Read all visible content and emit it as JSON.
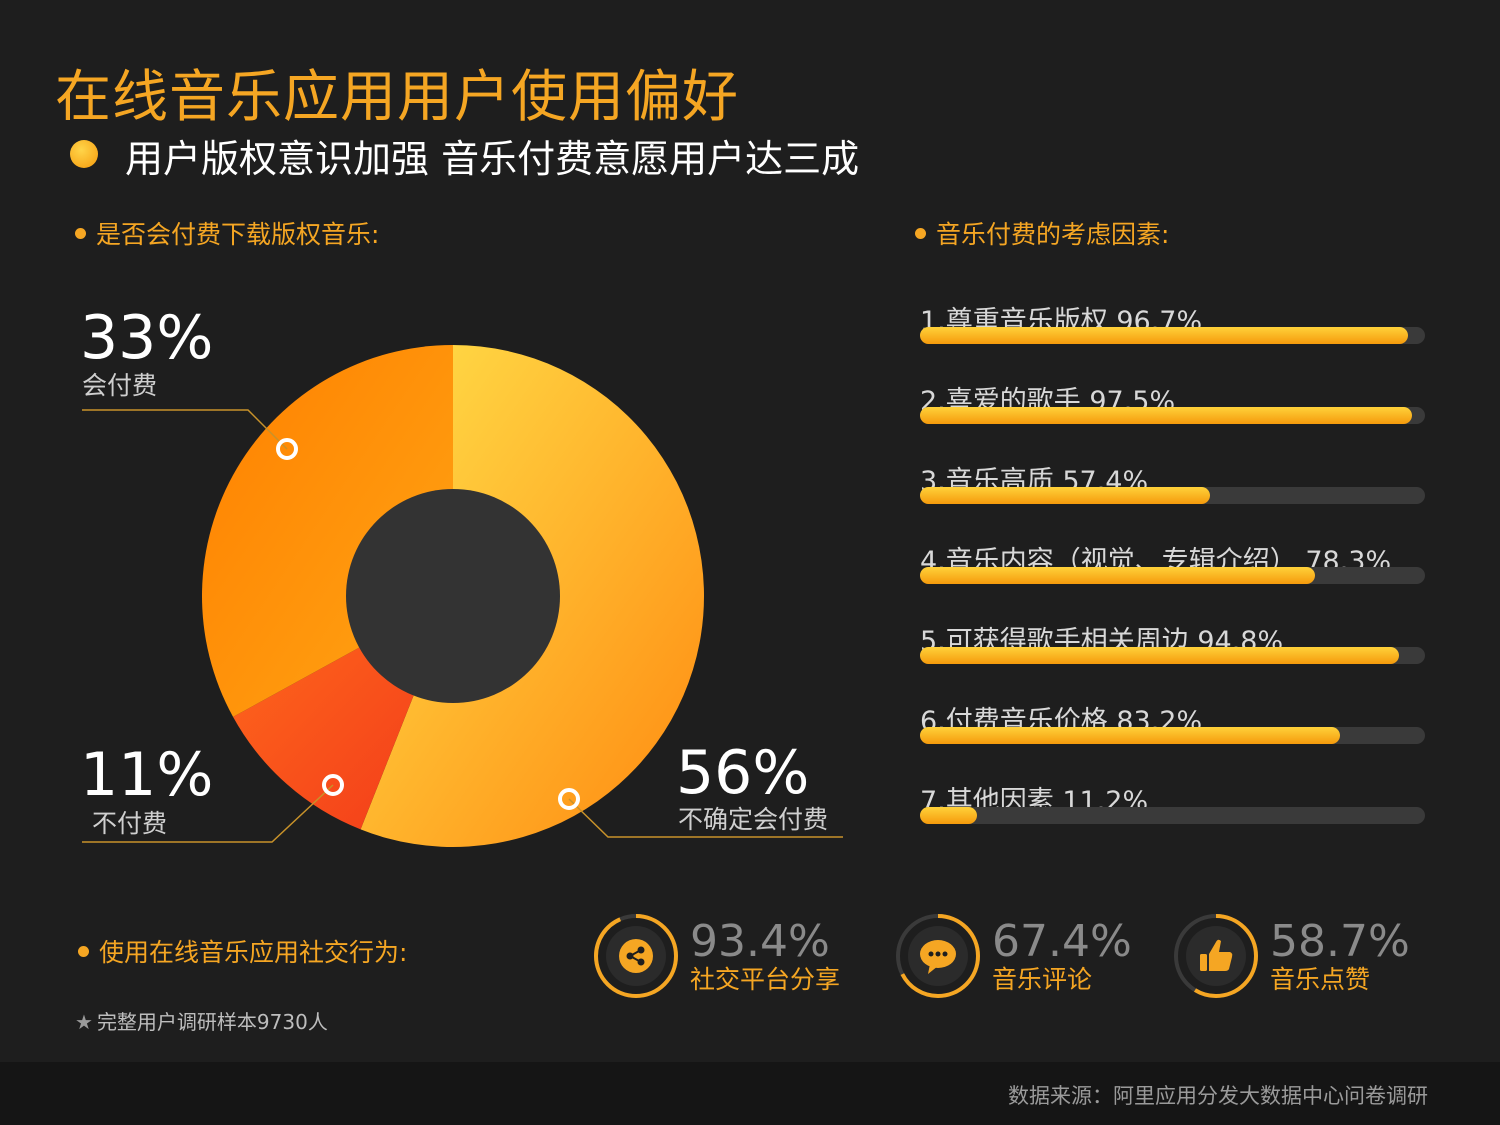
{
  "title": "在线音乐应用用户使用偏好",
  "subtitle": "用户版权意识加强 音乐付费意愿用户达三成",
  "pie_section_title": "是否会付费下载版权音乐:",
  "bars_section_title": "音乐付费的考虑因素:",
  "social_section_title": "使用在线音乐应用社交行为:",
  "note": "完整用户调研样本9730人",
  "source": "数据来源：阿里应用分发大数据中心问卷调研",
  "colors": {
    "accent": "#f5a623",
    "background": "#1e1e1e",
    "track": "#3a3a3a",
    "donut_hole": "#333333"
  },
  "chart_data": [
    {
      "type": "pie",
      "donut": true,
      "title": "是否会付费下载版权音乐:",
      "slices": [
        {
          "label": "不确定会付费",
          "value": 56,
          "display": "56%",
          "color": "#ffbe2e"
        },
        {
          "label": "不付费",
          "value": 11,
          "display": "11%",
          "color": "#ff4a22"
        },
        {
          "label": "会付费",
          "value": 33,
          "display": "33%",
          "color": "#ff8d0a"
        }
      ]
    },
    {
      "type": "bar",
      "orientation": "horizontal",
      "title": "音乐付费的考虑因素:",
      "xlim": [
        0,
        100
      ],
      "categories": [
        "1.尊重音乐版权",
        "2.喜爱的歌手",
        "3.音乐高质",
        "4.音乐内容（视觉、专辑介绍）",
        "5.可获得歌手相关周边",
        "6.付费音乐价格",
        "7.其他因素"
      ],
      "values": [
        96.7,
        97.5,
        57.4,
        78.3,
        94.8,
        83.2,
        11.2
      ],
      "value_labels": [
        "96.7%",
        "97.5%",
        "57.4%",
        "78.3%",
        "94.8%",
        "83.2%",
        "11.2%"
      ]
    }
  ],
  "social_stats": [
    {
      "value": "93.4%",
      "label": "社交平台分享",
      "icon": "share-icon",
      "fraction": 0.934
    },
    {
      "value": "67.4%",
      "label": "音乐评论",
      "icon": "comment-icon",
      "fraction": 0.674
    },
    {
      "value": "58.7%",
      "label": "音乐点赞",
      "icon": "thumbs-up-icon",
      "fraction": 0.587
    }
  ]
}
